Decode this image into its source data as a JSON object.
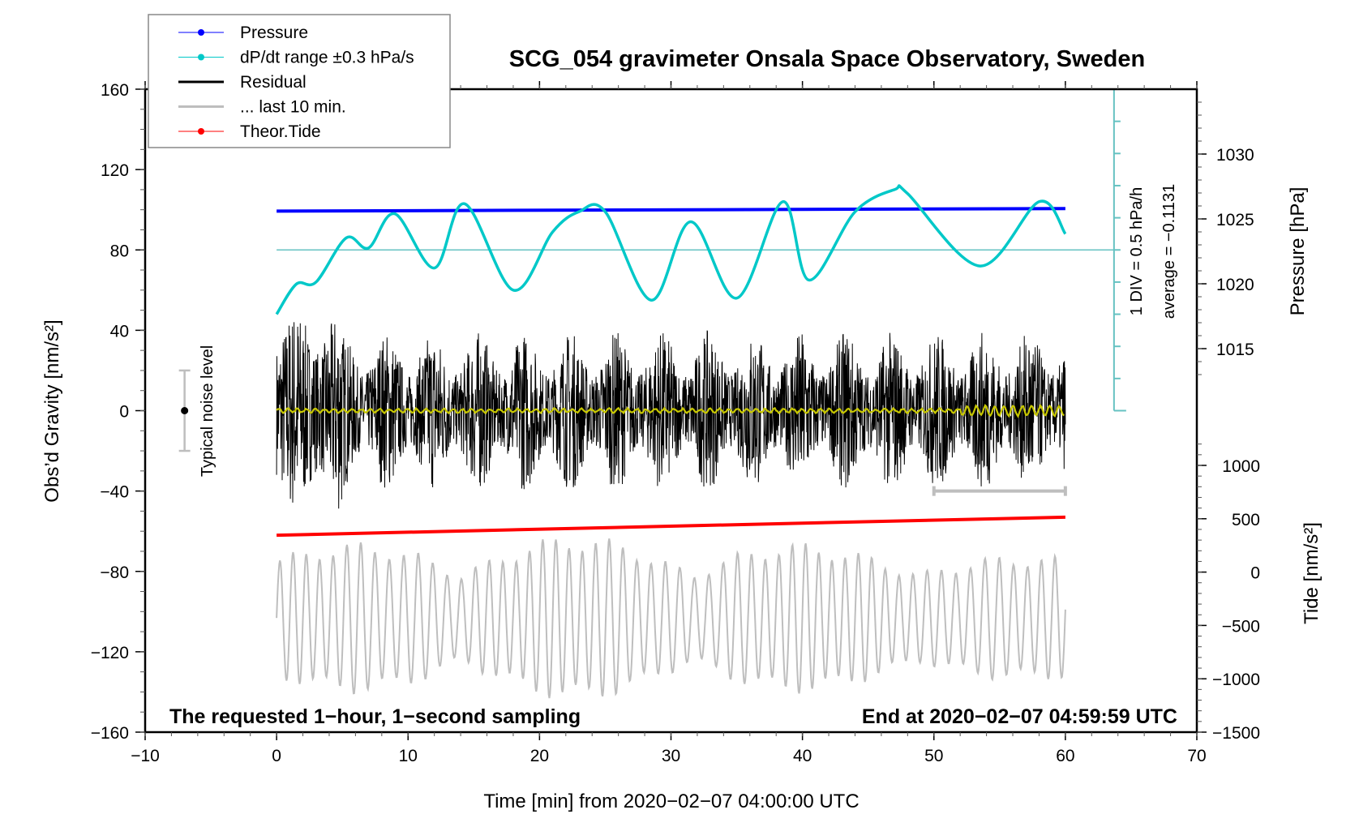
{
  "chart_data": {
    "type": "line",
    "title": "SCG_054 gravimeter Onsala Space Observatory, Sweden",
    "xlabel": "Time [min] from 2020−02−07 04:00:00 UTC",
    "ylabel": "Obs’d Gravity [nm/s²]",
    "ylabel_right_top": "Pressure [hPa]",
    "ylabel_right_bottom": "Tide [nm/s²]",
    "xlim": [
      -10,
      70
    ],
    "ylim": [
      -160,
      160
    ],
    "pressure_lim_ticks": [
      1015,
      1020,
      1025,
      1030
    ],
    "tide_ticks": [
      -1500,
      -1000,
      -500,
      0,
      500,
      1000
    ],
    "x_ticks": [
      -10,
      0,
      10,
      20,
      30,
      40,
      50,
      60,
      70
    ],
    "x_tick_labels": [
      "−10",
      "0",
      "10",
      "20",
      "30",
      "40",
      "50",
      "60",
      "70"
    ],
    "y_ticks": [
      -160,
      -120,
      -80,
      -40,
      0,
      40,
      80,
      120,
      160
    ],
    "y_tick_labels": [
      "−160",
      "−120",
      "−80",
      "−40",
      "0",
      "40",
      "80",
      "120",
      "160"
    ],
    "pressure_tick_labels": [
      "1015",
      "1020",
      "1025",
      "1030"
    ],
    "tide_tick_labels": [
      "−1500",
      "−1000",
      "−500",
      "0",
      "500",
      "1000"
    ],
    "legend": [
      {
        "label": "Pressure",
        "color": "#0000ff",
        "marker": "dot"
      },
      {
        "label": "dP/dt range ±0.3 hPa/s",
        "color": "#00c8c8",
        "marker": "dot"
      },
      {
        "label": "Residual",
        "color": "#000000",
        "marker": "line"
      },
      {
        "label": "... last 10 min.",
        "color": "#bebebe",
        "marker": "line"
      },
      {
        "label": "Theor.Tide",
        "color": "#ff0000",
        "marker": "dot"
      }
    ],
    "legend_position": "top-left",
    "annotations": {
      "bottom_left": "The requested 1−hour, 1−second sampling",
      "bottom_right": "End at 2020−02−07 04:59:59 UTC",
      "noise_label": "Typical noise level",
      "dpdt_scale": "1 DIV = 0.5 hPa/h",
      "dpdt_average": "average = −0.1131"
    },
    "series": [
      {
        "name": "Pressure",
        "axis": "pressure_hPa",
        "x": [
          0,
          60
        ],
        "values": [
          1025.6,
          1025.8
        ]
      },
      {
        "name": "dP/dt",
        "axis": "gravity_equiv",
        "x": [
          0,
          1.5,
          3,
          5.3,
          7,
          9,
          12,
          14.3,
          18,
          21,
          23,
          25,
          28.5,
          31.5,
          35,
          38.5,
          40.5,
          44,
          47,
          48,
          53.5,
          58,
          60
        ],
        "values": [
          48,
          63,
          64,
          86,
          81,
          98,
          71,
          103,
          60,
          89,
          99,
          99,
          55,
          94,
          56,
          104,
          65,
          99,
          110,
          108,
          72,
          104,
          88
        ]
      },
      {
        "name": "dP/dt zero line",
        "axis": "gravity_equiv",
        "values": [
          80
        ]
      },
      {
        "name": "Residual",
        "axis": "gravity",
        "x_range": [
          0,
          60
        ],
        "amplitude_approx": 45
      },
      {
        "name": "Residual smoothed",
        "axis": "gravity",
        "x_range": [
          0,
          60
        ],
        "values_approx": 0
      },
      {
        "name": "Theor.Tide",
        "axis": "gravity",
        "x": [
          0,
          60
        ],
        "values": [
          -62,
          -53
        ]
      },
      {
        "name": "last 10 min bar",
        "axis": "gravity",
        "x": [
          50,
          60
        ],
        "values": [
          -40,
          -40
        ]
      },
      {
        "name": "Tide (last 10 min grey)",
        "axis": "tide",
        "x_range": [
          0,
          60
        ],
        "range_approx": [
          -1300,
          400
        ]
      }
    ],
    "noise_bar": {
      "x": -7,
      "center": 0,
      "half_range": 20
    }
  }
}
